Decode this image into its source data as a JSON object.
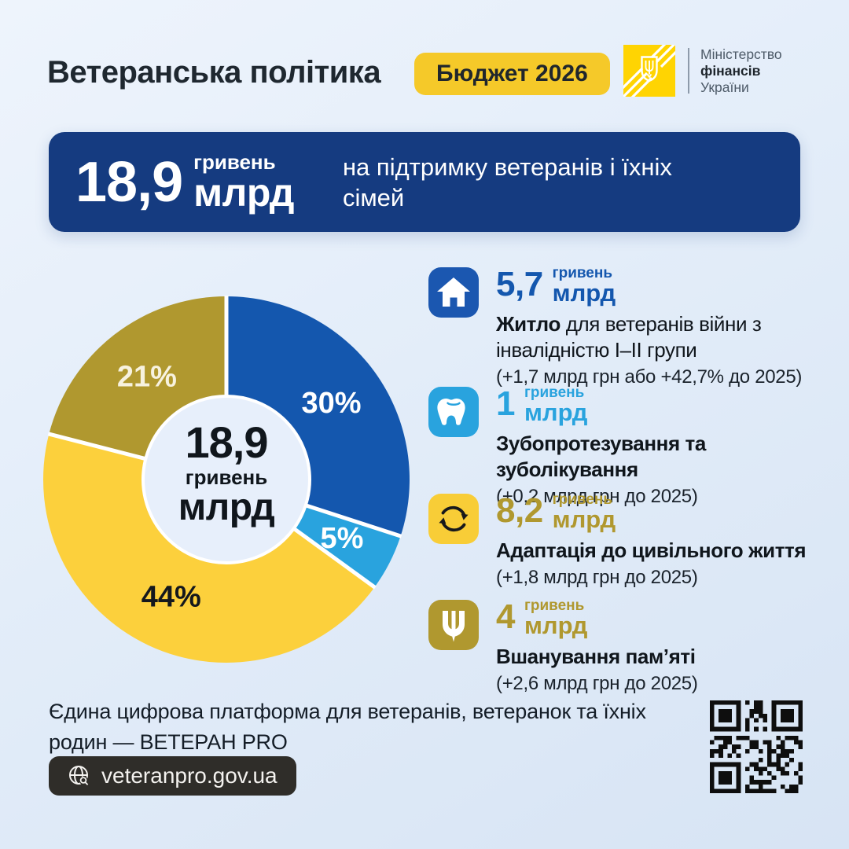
{
  "header": {
    "title": "Ветеранська політика",
    "badge": "Бюджет 2026",
    "ministry": {
      "line1": "Міністерство",
      "line2": "фінансів",
      "line3": "України"
    }
  },
  "banner": {
    "amount": "18,9",
    "unit_top": "гривень",
    "unit_bottom": "млрд",
    "desc_line1": "на підтримку ветеранів і їхніх",
    "desc_line2": "сімей"
  },
  "chart_data": {
    "type": "pie",
    "donut": true,
    "start_angle_deg": 0,
    "direction": "clockwise-from-top",
    "center": {
      "amount": "18,9",
      "unit_top": "гривень",
      "unit_bottom": "млрд"
    },
    "segments": [
      {
        "category": "Житло для ветеранів війни з інвалідністю І–ІІ групи",
        "percent": 30,
        "label": "30%",
        "color": "#1457ae",
        "label_color": "#ffffff"
      },
      {
        "category": "Зубопротезування та зуболікування",
        "percent": 5,
        "label": "5%",
        "color": "#29a3de",
        "label_color": "#ffffff"
      },
      {
        "category": "Адаптація до цивільного життя",
        "percent": 44,
        "label": "44%",
        "color": "#fcd03c",
        "label_color": "#14181d"
      },
      {
        "category": "Вшанування пам’яті",
        "percent": 21,
        "label": "21%",
        "color": "#b0982f",
        "label_color": "#f7f2df"
      }
    ],
    "hole_color": "#e7effb",
    "separator_color": "#ffffff"
  },
  "legend": {
    "items": [
      {
        "icon": "house-icon",
        "icon_bg": "#1b57b0",
        "amount_color": "#1457ae",
        "amount": "5,7",
        "unit_top": "гривень",
        "unit_bottom": "млрд",
        "title_bold": "Житло",
        "title_regular": " для ветеранів війни з інвалідністю І–ІІ групи",
        "note": "(+1,7 млрд грн або +42,7% до 2025)"
      },
      {
        "icon": "tooth-icon",
        "icon_bg": "#29a3de",
        "amount_color": "#29a3de",
        "amount": "1",
        "unit_top": "гривень",
        "unit_bottom": "млрд",
        "title_bold": "Зубопротезування та зуболікування",
        "title_regular": "",
        "note": "(+0,2 млрд грн до 2025)"
      },
      {
        "icon": "sync-arrows-icon",
        "icon_bg": "#f8cd37",
        "amount_color": "#b0982f",
        "amount": "8,2",
        "unit_top": "гривень",
        "unit_bottom": "млрд",
        "title_bold": "Адаптація до цивільного життя",
        "title_regular": "",
        "note": "(+1,8 млрд грн до 2025)"
      },
      {
        "icon": "trident-icon",
        "icon_bg": "#b0982f",
        "amount_color": "#b0982f",
        "amount": "4",
        "unit_top": "гривень",
        "unit_bottom": "млрд",
        "title_bold": "Вшанування пам’яті",
        "title_regular": "",
        "note": "(+2,6 млрд грн до 2025)"
      }
    ]
  },
  "footer": {
    "line1": "Єдина цифрова платформа для ветеранів, ветеранок та їхніх",
    "line2": "родин — ВЕТЕРАН PRO",
    "url": "veteranpro.gov.ua"
  }
}
